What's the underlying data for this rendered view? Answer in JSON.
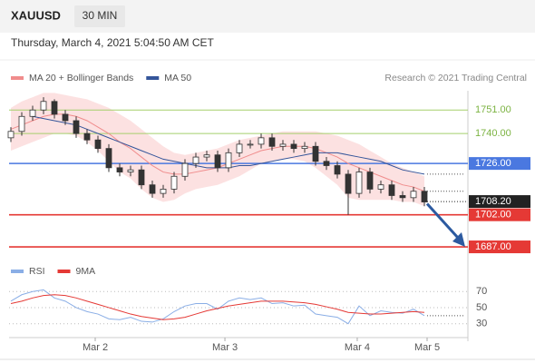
{
  "symbol": "XAUUSD",
  "timeframe": "30 MIN",
  "datetime": "Thursday, March 4, 2021 5:04:50 AM CET",
  "chart_data": [
    {
      "type": "candlestick",
      "legend": [
        {
          "name": "MA 20 + Bollinger Bands",
          "color": "#f08c8c"
        },
        {
          "name": "MA 50",
          "color": "#34559a"
        }
      ],
      "credit": "Research © 2021 Trading Central",
      "up_color": "#ffffff",
      "down_color": "#333333",
      "wick_color": "#333333",
      "xlim": [
        0,
        42
      ],
      "ylim": [
        1681.5,
        1760
      ],
      "xticks": [
        {
          "value": 7.75,
          "label": "Mar 2"
        },
        {
          "value": 19.67,
          "label": "Mar 3"
        },
        {
          "value": 31.83,
          "label": "Mar 4"
        },
        {
          "value": 38.25,
          "label": "Mar 5"
        }
      ],
      "open": [
        1738,
        1741,
        1748,
        1751,
        1755,
        1749,
        1746,
        1740,
        1737,
        1733,
        1724,
        1722,
        1723,
        1716,
        1712,
        1714,
        1720,
        1726,
        1729,
        1730,
        1724,
        1731,
        1735,
        1735,
        1738,
        1734,
        1735,
        1733,
        1734,
        1727,
        1725,
        1721,
        1712,
        1722,
        1714,
        1716,
        1711,
        1710,
        1713
      ],
      "high": [
        1743,
        1750,
        1753,
        1757,
        1756,
        1751,
        1748,
        1742,
        1739,
        1735,
        1726,
        1725,
        1725,
        1718,
        1716,
        1722,
        1728,
        1731,
        1732,
        1732,
        1733,
        1737,
        1737,
        1740,
        1740,
        1737,
        1737,
        1736,
        1736,
        1729,
        1727,
        1723,
        1724,
        1724,
        1718,
        1718,
        1713,
        1715,
        1715
      ],
      "low": [
        1736,
        1739,
        1746,
        1749,
        1747,
        1744,
        1738,
        1735,
        1731,
        1722,
        1720,
        1720,
        1714,
        1710,
        1710,
        1712,
        1718,
        1724,
        1727,
        1722,
        1722,
        1729,
        1733,
        1733,
        1732,
        1732,
        1731,
        1731,
        1725,
        1723,
        1719,
        1702,
        1710,
        1712,
        1712,
        1709,
        1708,
        1708,
        1706
      ],
      "close": [
        1741,
        1748,
        1751,
        1755,
        1749,
        1746,
        1740,
        1737,
        1733,
        1724,
        1722,
        1723,
        1716,
        1712,
        1714,
        1720,
        1726,
        1729,
        1730,
        1724,
        1731,
        1735,
        1735,
        1738,
        1734,
        1735,
        1733,
        1734,
        1727,
        1725,
        1721,
        1712,
        1722,
        1714,
        1716,
        1711,
        1710,
        1713,
        1708
      ],
      "ma20": [
        1742,
        1744,
        1746,
        1748,
        1749,
        1749,
        1748,
        1746,
        1743,
        1740,
        1736,
        1733,
        1729,
        1725,
        1722,
        1721,
        1721,
        1722,
        1723,
        1724,
        1726,
        1728,
        1730,
        1732,
        1733,
        1734,
        1734,
        1734,
        1733,
        1731,
        1729,
        1726,
        1724,
        1722,
        1720,
        1718,
        1716,
        1715,
        1713
      ],
      "bb_upper": [
        1752,
        1755,
        1757,
        1759,
        1759,
        1758,
        1757,
        1756,
        1754,
        1752,
        1749,
        1746,
        1742,
        1738,
        1734,
        1731,
        1730,
        1731,
        1732,
        1733,
        1735,
        1737,
        1738,
        1739,
        1740,
        1741,
        1741,
        1741,
        1741,
        1740,
        1739,
        1737,
        1735,
        1732,
        1729,
        1726,
        1724,
        1722,
        1720
      ],
      "bb_lower": [
        1732,
        1734,
        1736,
        1738,
        1740,
        1740,
        1739,
        1736,
        1732,
        1727,
        1722,
        1719,
        1714,
        1710,
        1708,
        1709,
        1712,
        1714,
        1715,
        1716,
        1718,
        1720,
        1723,
        1726,
        1727,
        1728,
        1728,
        1727,
        1724,
        1720,
        1716,
        1710,
        1709,
        1709,
        1709,
        1709,
        1708,
        1708,
        1706
      ],
      "ma50": [
        null,
        null,
        1748,
        1747,
        1746,
        1745,
        1744,
        1742,
        1740,
        1738,
        1736,
        1734,
        1732,
        1730,
        1728,
        1727,
        1726,
        1725,
        1724,
        1724,
        1724,
        1725,
        1725,
        1726,
        1727,
        1728,
        1729,
        1730,
        1731,
        1731,
        1731,
        1730,
        1729,
        1728,
        1727,
        1725,
        1723,
        1722,
        1721
      ],
      "levels": [
        1751,
        1740,
        1726,
        1708.2,
        1702,
        1687
      ],
      "level_labels": [
        "1751.00",
        "1740.00",
        "1726.00",
        "1708.20",
        "1702.00",
        "1687.00"
      ],
      "level_colors": [
        "#a5cf6c",
        "#a5cf6c",
        "#4a78e0",
        "#222222",
        "#e53935",
        "#e53935"
      ],
      "level_styles": [
        "solid",
        "solid",
        "solid",
        "dotted",
        "solid",
        "solid"
      ]
    },
    {
      "type": "line",
      "ylim": [
        15,
        77
      ],
      "yticks": [
        70,
        50,
        30
      ],
      "series": [
        {
          "name": "RSI",
          "color": "#8aaee6",
          "values": [
            58,
            66,
            70,
            72,
            62,
            58,
            50,
            45,
            42,
            36,
            35,
            38,
            33,
            32,
            36,
            45,
            52,
            55,
            55,
            48,
            58,
            62,
            60,
            62,
            55,
            56,
            52,
            53,
            42,
            40,
            38,
            30,
            52,
            40,
            46,
            44,
            43,
            48,
            40
          ]
        },
        {
          "name": "9MA",
          "color": "#e53935",
          "values": [
            55,
            58,
            62,
            65,
            66,
            65,
            62,
            58,
            54,
            50,
            46,
            42,
            39,
            37,
            35,
            36,
            38,
            42,
            46,
            49,
            52,
            54,
            56,
            58,
            58,
            58,
            57,
            56,
            54,
            51,
            48,
            44,
            43,
            42,
            42,
            43,
            44,
            45,
            44
          ]
        }
      ]
    }
  ]
}
